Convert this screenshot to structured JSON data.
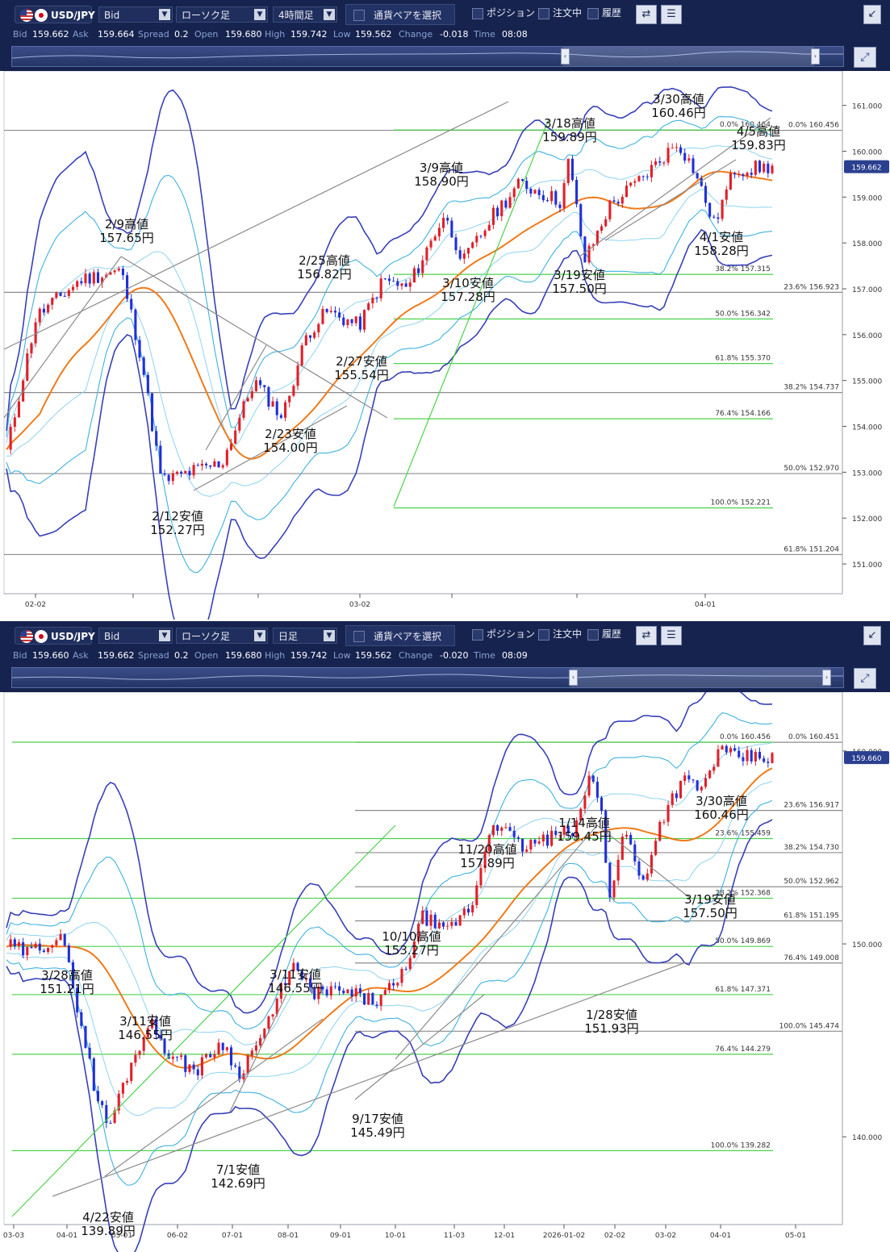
{
  "panels": [
    {
      "toolbar": {
        "pair": "USD/JPY",
        "price_type": "Bid",
        "chart_type": "ローソク足",
        "timeframe": "4時間足",
        "select_pair": "通貨ペアを選択",
        "positions": "ポジション",
        "orders": "注文中",
        "history": "履歴",
        "quotes": {
          "bid_label": "Bid",
          "bid": "159.662",
          "ask_label": "Ask",
          "ask": "159.664",
          "spread_label": "Spread",
          "spread": "0.2",
          "open_label": "Open",
          "open": "159.680",
          "high_label": "High",
          "high": "159.742",
          "low_label": "Low",
          "low": "159.562",
          "change_label": "Change",
          "change": "-0.018",
          "time_label": "Time",
          "time": "08:08"
        }
      },
      "chart_data": {
        "type": "candlestick",
        "ylim": [
          150.35,
          161.75
        ],
        "y_ticks": [
          "161.000",
          "160.000",
          "159.000",
          "158.000",
          "157.000",
          "156.000",
          "155.000",
          "154.000",
          "153.000",
          "152.000",
          "151.000"
        ],
        "x_ticks": [
          "02-02",
          "03-02",
          "04-01"
        ],
        "current_price": "159.662",
        "annotations": [
          {
            "label": "2/9高値",
            "value": "157.65円"
          },
          {
            "label": "2/12安値",
            "value": "152.27円"
          },
          {
            "label": "2/23安値",
            "value": "154.00円"
          },
          {
            "label": "2/25高値",
            "value": "156.82円"
          },
          {
            "label": "2/27安値",
            "value": "155.54円"
          },
          {
            "label": "3/9高値",
            "value": "158.90円"
          },
          {
            "label": "3/10安値",
            "value": "157.28円"
          },
          {
            "label": "3/18高値",
            "value": "159.89円"
          },
          {
            "label": "3/19安値",
            "value": "157.50円"
          },
          {
            "label": "3/30高値",
            "value": "160.46円"
          },
          {
            "label": "4/1安値",
            "value": "158.28円"
          },
          {
            "label": "4/5高値",
            "value": "159.83円"
          }
        ],
        "fib_gray": [
          {
            "pct": "0.0%",
            "price": "160.456",
            "y": 160.456
          },
          {
            "pct": "23.6%",
            "price": "156.923",
            "y": 156.923
          },
          {
            "pct": "38.2%",
            "price": "154.737",
            "y": 154.737
          },
          {
            "pct": "50.0%",
            "price": "152.970",
            "y": 152.97
          },
          {
            "pct": "61.8%",
            "price": "151.204",
            "y": 151.204
          }
        ],
        "fib_green": [
          {
            "pct": "0.0%",
            "price": "160.464",
            "y": 160.464
          },
          {
            "pct": "38.2%",
            "price": "157.315",
            "y": 157.315
          },
          {
            "pct": "50.0%",
            "price": "156.342",
            "y": 156.342
          },
          {
            "pct": "61.8%",
            "price": "155.370",
            "y": 155.37
          },
          {
            "pct": "76.4%",
            "price": "154.166",
            "y": 154.166
          },
          {
            "pct": "100.0%",
            "price": "152.221",
            "y": 152.221
          }
        ],
        "anchors": [
          [
            0,
            153.2
          ],
          [
            40,
            156.4
          ],
          [
            95,
            157.2
          ],
          [
            145,
            157.4
          ],
          [
            170,
            155.5
          ],
          [
            195,
            152.8
          ],
          [
            230,
            153.0
          ],
          [
            270,
            153.2
          ],
          [
            310,
            155.0
          ],
          [
            345,
            154.2
          ],
          [
            375,
            156.0
          ],
          [
            400,
            156.5
          ],
          [
            440,
            156.2
          ],
          [
            470,
            157.2
          ],
          [
            500,
            157.0
          ],
          [
            545,
            158.6
          ],
          [
            570,
            157.6
          ],
          [
            610,
            158.7
          ],
          [
            640,
            159.3
          ],
          [
            690,
            158.9
          ],
          [
            700,
            159.8
          ],
          [
            720,
            157.6
          ],
          [
            750,
            158.8
          ],
          [
            790,
            159.4
          ],
          [
            835,
            160.2
          ],
          [
            855,
            159.6
          ],
          [
            880,
            158.4
          ],
          [
            905,
            159.6
          ],
          [
            955,
            159.66
          ]
        ]
      }
    },
    {
      "toolbar": {
        "pair": "USD/JPY",
        "price_type": "Bid",
        "chart_type": "ローソク足",
        "timeframe": "日足",
        "select_pair": "通貨ペアを選択",
        "positions": "ポジション",
        "orders": "注文中",
        "history": "履歴",
        "quotes": {
          "bid_label": "Bid",
          "bid": "159.660",
          "ask_label": "Ask",
          "ask": "159.662",
          "spread_label": "Spread",
          "spread": "0.2",
          "open_label": "Open",
          "open": "159.680",
          "high_label": "High",
          "high": "159.742",
          "low_label": "Low",
          "low": "159.562",
          "change_label": "Change",
          "change": "-0.020",
          "time_label": "Time",
          "time": "08:09"
        }
      },
      "chart_data": {
        "type": "candlestick",
        "ylim": [
          135.45,
          163.05
        ],
        "y_ticks": [
          "160.000",
          "150.000",
          "140.000"
        ],
        "x_ticks": [
          "03-03",
          "04-01",
          "05-01",
          "06-02",
          "07-01",
          "08-01",
          "09-01",
          "10-01",
          "11-03",
          "12-01",
          "2026-01-02",
          "02-02",
          "03-02",
          "04-01",
          "05-01"
        ],
        "current_price": "159.660",
        "annotations": [
          {
            "label": "3/28高値",
            "value": "151.21円"
          },
          {
            "label": "3/11安値",
            "value": "146.55円"
          },
          {
            "label": "4/22安値",
            "value": "139.89円"
          },
          {
            "label": "7/1安値",
            "value": "142.69円"
          },
          {
            "label": "3/11安値",
            "value": "146.55円"
          },
          {
            "label": "9/17安値",
            "value": "145.49円"
          },
          {
            "label": "10/10高値",
            "value": "153.27円"
          },
          {
            "label": "11/20高値",
            "value": "157.89円"
          },
          {
            "label": "1/14高値",
            "value": "159.45円"
          },
          {
            "label": "1/28安値",
            "value": "151.93円"
          },
          {
            "label": "3/30高値",
            "value": "160.46円"
          },
          {
            "label": "3/19安値",
            "value": "157.50円"
          }
        ],
        "fib_gray": [
          {
            "pct": "0.0%",
            "price": "160.451",
            "y": 160.451
          },
          {
            "pct": "23.6%",
            "price": "156.917",
            "y": 156.917
          },
          {
            "pct": "38.2%",
            "price": "154.730",
            "y": 154.73
          },
          {
            "pct": "50.0%",
            "price": "152.962",
            "y": 152.962
          },
          {
            "pct": "61.8%",
            "price": "151.195",
            "y": 151.195
          },
          {
            "pct": "76.4%",
            "price": "149.008",
            "y": 149.008
          },
          {
            "pct": "100.0%",
            "price": "145.474",
            "y": 145.474
          }
        ],
        "fib_green": [
          {
            "pct": "0.0%",
            "price": "160.456",
            "y": 160.456
          },
          {
            "pct": "23.6%",
            "price": "155.459",
            "y": 155.459
          },
          {
            "pct": "38.2%",
            "price": "152.368",
            "y": 152.368
          },
          {
            "pct": "50.0%",
            "price": "149.869",
            "y": 149.869
          },
          {
            "pct": "61.8%",
            "price": "147.371",
            "y": 147.371
          },
          {
            "pct": "76.4%",
            "price": "144.279",
            "y": 144.279
          },
          {
            "pct": "100.0%",
            "price": "139.282",
            "y": 139.282
          }
        ],
        "anchors": [
          [
            0,
            150.0
          ],
          [
            30,
            149.5
          ],
          [
            70,
            150.5
          ],
          [
            90,
            147.0
          ],
          [
            115,
            142.0
          ],
          [
            130,
            140.5
          ],
          [
            150,
            143.0
          ],
          [
            180,
            146.0
          ],
          [
            210,
            144.0
          ],
          [
            240,
            143.5
          ],
          [
            270,
            145.0
          ],
          [
            290,
            143.2
          ],
          [
            330,
            146.0
          ],
          [
            355,
            149.0
          ],
          [
            380,
            147.5
          ],
          [
            420,
            147.5
          ],
          [
            460,
            147.0
          ],
          [
            490,
            148.0
          ],
          [
            520,
            151.5
          ],
          [
            545,
            150.5
          ],
          [
            580,
            152.0
          ],
          [
            605,
            156.5
          ],
          [
            640,
            155.0
          ],
          [
            680,
            155.5
          ],
          [
            710,
            156.0
          ],
          [
            725,
            158.8
          ],
          [
            740,
            157.0
          ],
          [
            750,
            152.5
          ],
          [
            770,
            156.0
          ],
          [
            790,
            153.0
          ],
          [
            815,
            156.5
          ],
          [
            840,
            158.5
          ],
          [
            865,
            158.0
          ],
          [
            885,
            160.0
          ],
          [
            905,
            159.66
          ]
        ]
      }
    }
  ]
}
